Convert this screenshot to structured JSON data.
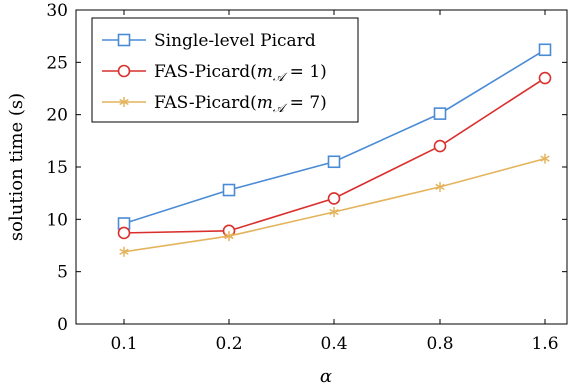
{
  "chart_data": {
    "type": "line",
    "title": "",
    "xlabel": "α",
    "ylabel": "solution time (s)",
    "categories": [
      "0.1",
      "0.2",
      "0.4",
      "0.8",
      "1.6"
    ],
    "ylim": [
      0,
      30
    ],
    "yticks": [
      "0",
      "5",
      "10",
      "15",
      "20",
      "25",
      "30"
    ],
    "grid": false,
    "legend_position": "top-left",
    "series": [
      {
        "name": "Single-level Picard",
        "values": [
          9.6,
          12.8,
          15.5,
          20.1,
          26.2
        ],
        "color": "#4a8bd6",
        "marker": "square"
      },
      {
        "name": "FAS-Picard(m𝒜 = 1)",
        "legend_main": "FAS-Picard(",
        "legend_var": "m",
        "legend_sub": "𝒜",
        "legend_rest": " = 1)",
        "values": [
          8.7,
          8.9,
          12.0,
          17.0,
          23.5
        ],
        "color": "#d9302e",
        "marker": "circle"
      },
      {
        "name": "FAS-Picard(m𝒜 = 7)",
        "legend_main": "FAS-Picard(",
        "legend_var": "m",
        "legend_sub": "𝒜",
        "legend_rest": " = 7)",
        "values": [
          6.9,
          8.4,
          10.7,
          13.1,
          15.8
        ],
        "color": "#e4b45c",
        "marker": "star"
      }
    ]
  }
}
